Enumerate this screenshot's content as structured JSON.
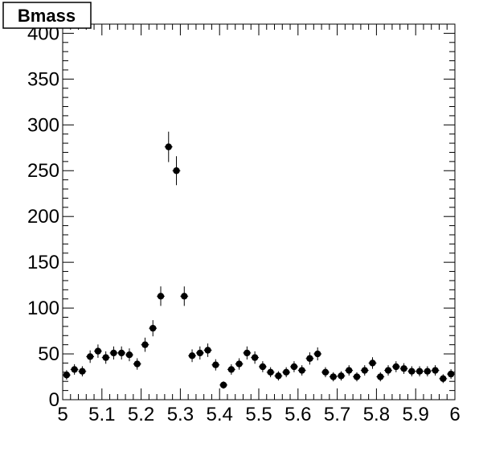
{
  "chart_data": {
    "type": "scatter",
    "title": "Bmass",
    "xlabel": "",
    "ylabel": "",
    "xlim": [
      5.0,
      6.0
    ],
    "ylim": [
      0,
      410
    ],
    "grid": false,
    "x_ticks": [
      "5",
      "5.1",
      "5.2",
      "5.3",
      "5.4",
      "5.5",
      "5.6",
      "5.7",
      "5.8",
      "5.9",
      "6"
    ],
    "y_ticks": [
      "0",
      "50",
      "100",
      "150",
      "200",
      "250",
      "300",
      "350",
      "400"
    ],
    "x_tick_values": [
      5.0,
      5.1,
      5.2,
      5.3,
      5.4,
      5.5,
      5.6,
      5.7,
      5.8,
      5.9,
      6.0
    ],
    "y_tick_values": [
      0,
      50,
      100,
      150,
      200,
      250,
      300,
      350,
      400
    ],
    "bin_width": 0.02,
    "series": [
      {
        "x": [
          5.01,
          5.03,
          5.05,
          5.07,
          5.09,
          5.11,
          5.13,
          5.15,
          5.17,
          5.19,
          5.21,
          5.23,
          5.25,
          5.27,
          5.29,
          5.31,
          5.33,
          5.35,
          5.37,
          5.39,
          5.41,
          5.43,
          5.45,
          5.47,
          5.49,
          5.51,
          5.53,
          5.55,
          5.57,
          5.59,
          5.61,
          5.63,
          5.65,
          5.67,
          5.69,
          5.71,
          5.73,
          5.75,
          5.77,
          5.79,
          5.81,
          5.83,
          5.85,
          5.87,
          5.89,
          5.91,
          5.93,
          5.95,
          5.97,
          5.99
        ],
        "y": [
          27,
          33,
          31,
          47,
          53,
          46,
          51,
          51,
          49,
          39,
          60,
          78,
          113,
          276,
          250,
          113,
          48,
          51,
          54,
          38,
          16,
          33,
          39,
          51,
          46,
          36,
          30,
          26,
          30,
          36,
          32,
          45,
          50,
          30,
          25,
          26,
          32,
          25,
          32,
          40,
          25,
          32,
          36,
          34,
          31,
          31,
          31,
          32,
          23,
          28
        ]
      }
    ],
    "colors": {
      "markers": "#000000",
      "axes": "#000000",
      "background": "#ffffff"
    }
  }
}
